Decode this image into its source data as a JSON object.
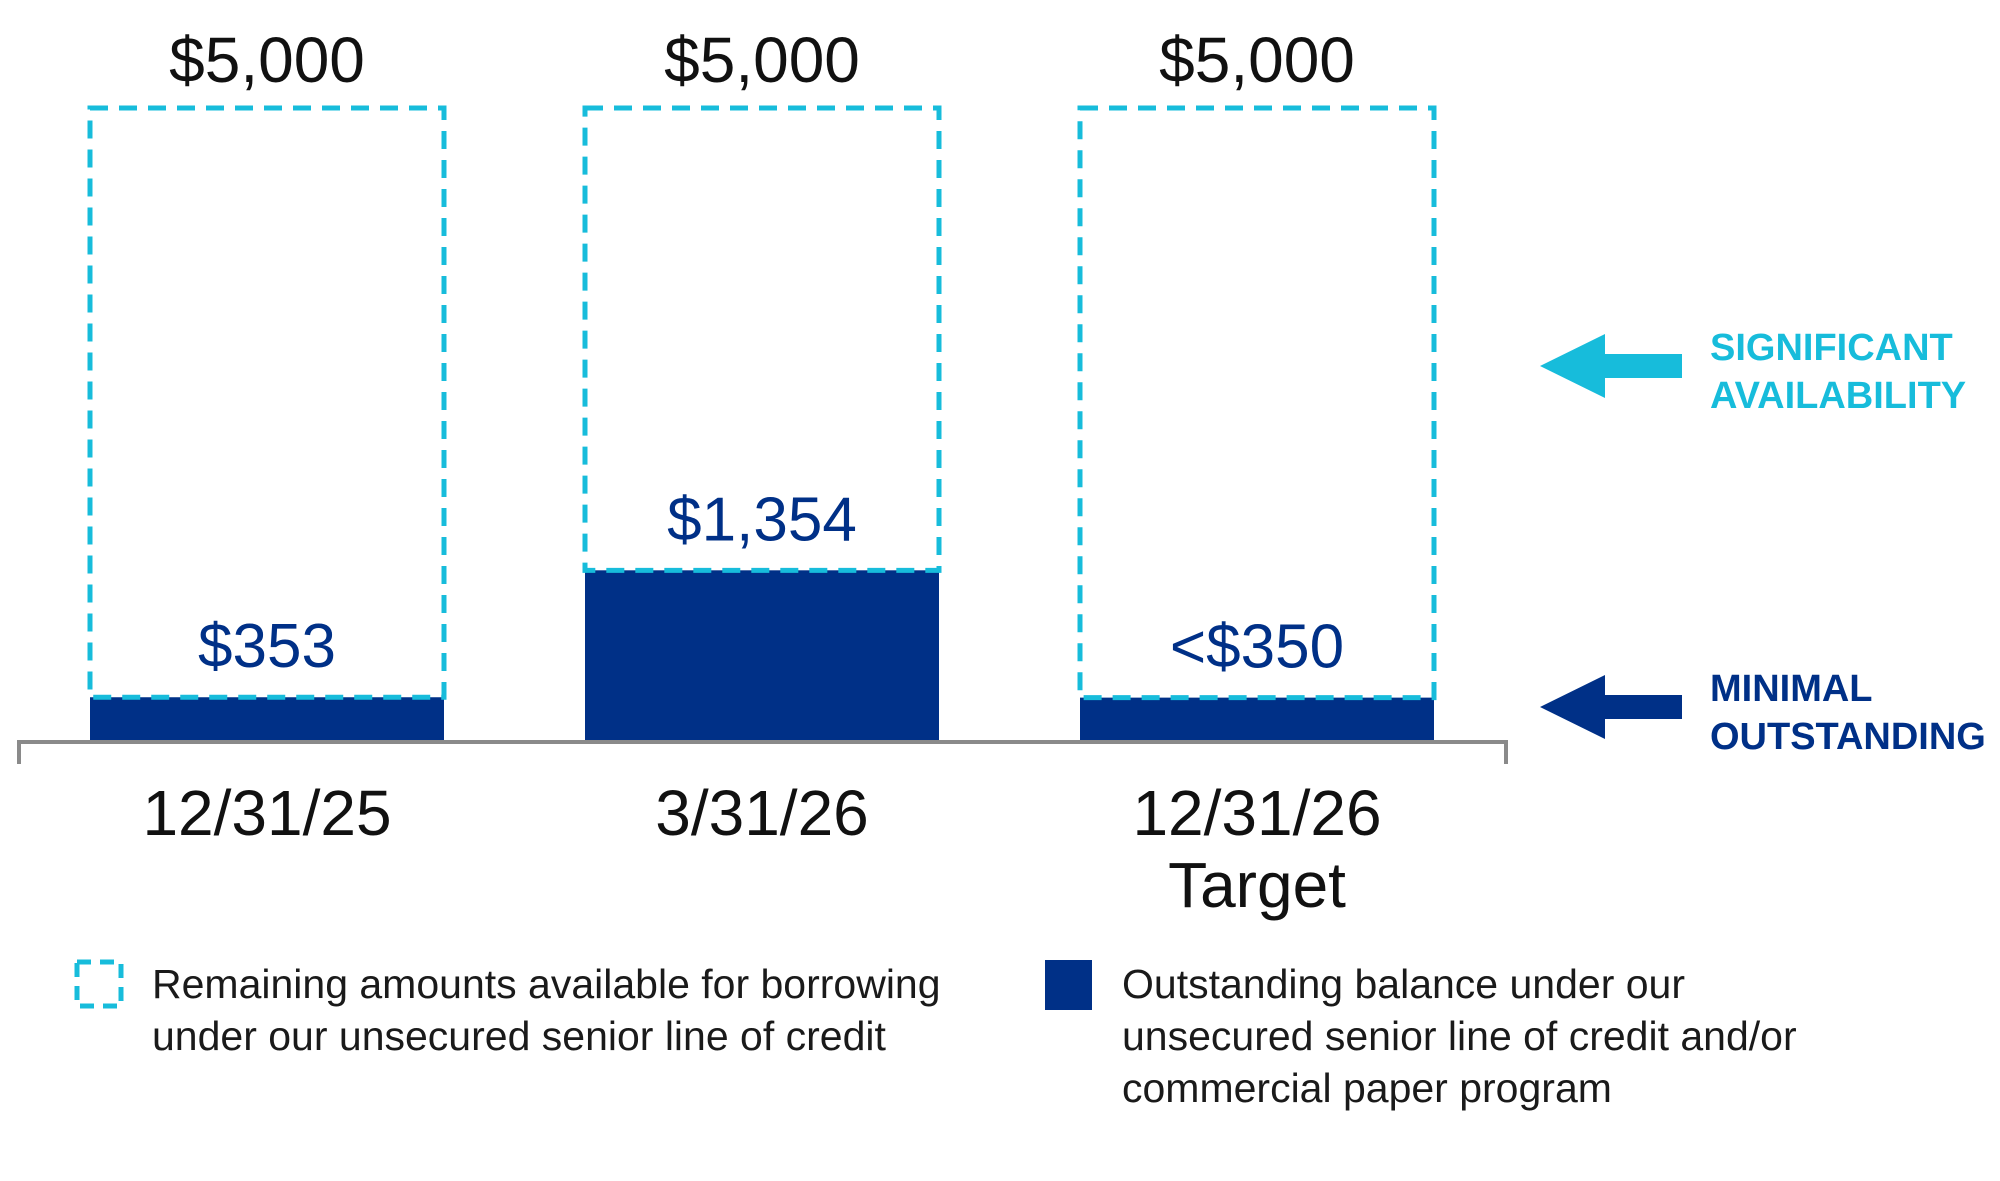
{
  "colors": {
    "available": "#17BCDB",
    "outstanding": "#003087",
    "axis": "#8a8a8a"
  },
  "chart_data": {
    "type": "bar",
    "categories": [
      "12/31/25",
      "3/31/26",
      "12/31/26"
    ],
    "category_sublabels": [
      "",
      "",
      "Target"
    ],
    "ylim": [
      0,
      5000
    ],
    "series": [
      {
        "name": "Remaining amounts available for borrowing under our unsecured senior line of credit",
        "values": [
          5000,
          5000,
          5000
        ],
        "labels": [
          "$5,000",
          "$5,000",
          "$5,000"
        ]
      },
      {
        "name": "Outstanding balance under our unsecured senior line of credit and/or commercial paper program",
        "values": [
          353,
          1354,
          350
        ],
        "labels": [
          "$353",
          "$1,354",
          "<$350"
        ]
      }
    ],
    "annotations": [
      {
        "lines": [
          "SIGNIFICANT",
          "AVAILABILITY"
        ],
        "refers_to": "available"
      },
      {
        "lines": [
          "MINIMAL",
          "OUTSTANDING"
        ],
        "refers_to": "outstanding"
      }
    ],
    "legend": [
      {
        "lines": [
          "Remaining amounts available for borrowing",
          "under our unsecured senior line of credit"
        ],
        "style": "dashed",
        "series": "available"
      },
      {
        "lines": [
          "Outstanding balance under our",
          "unsecured senior line of credit and/or",
          "commercial paper program"
        ],
        "style": "solid",
        "series": "outstanding"
      }
    ],
    "grid": false
  }
}
